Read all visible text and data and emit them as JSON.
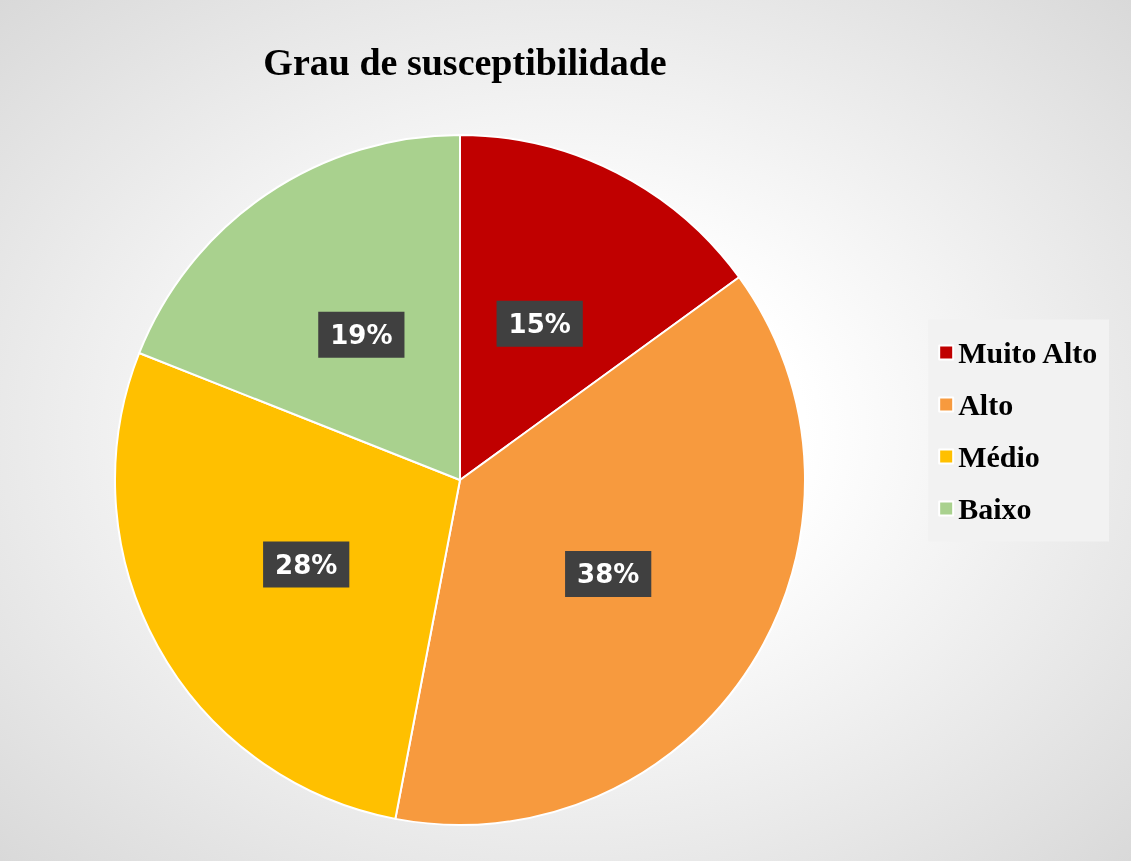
{
  "chart_data": {
    "type": "pie",
    "title": "Grau de susceptibilidade",
    "categories": [
      "Muito Alto",
      "Alto",
      "Médio",
      "Baixo"
    ],
    "values": [
      15,
      38,
      28,
      19
    ],
    "colors": [
      "#c00000",
      "#f79a3e",
      "#ffc000",
      "#a9d18e"
    ],
    "value_labels": [
      "15%",
      "38%",
      "28%",
      "19%"
    ],
    "legend": "right"
  }
}
